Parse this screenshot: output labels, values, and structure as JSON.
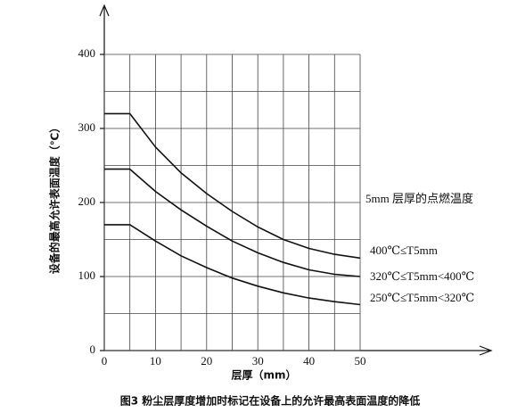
{
  "chart_data": {
    "type": "line",
    "y_label": "设备的最高允许表面温度（℃）",
    "x_label": "层厚（mm）",
    "caption": "图3 粉尘层厚度增加时标记在设备上的允许最高表面温度的降低",
    "annotation": "5mm 层厚的点燃温度",
    "x": [
      0,
      5,
      10,
      15,
      20,
      25,
      30,
      35,
      40,
      45,
      50
    ],
    "series": [
      {
        "name": "400℃≤T5mm",
        "color": "#111111",
        "values": [
          320,
          320,
          275,
          240,
          212,
          188,
          167,
          150,
          138,
          130,
          125
        ]
      },
      {
        "name": "320℃≤T5mm<400℃",
        "color": "#111111",
        "values": [
          245,
          245,
          215,
          190,
          168,
          148,
          132,
          119,
          109,
          103,
          100
        ]
      },
      {
        "name": "250℃≤T5mm<320℃",
        "color": "#111111",
        "values": [
          170,
          170,
          148,
          128,
          112,
          98,
          87,
          78,
          71,
          66,
          62
        ]
      }
    ],
    "xlim": [
      0,
      50
    ],
    "ylim": [
      0,
      400
    ],
    "xticks": [
      0,
      10,
      20,
      30,
      40,
      50
    ],
    "yticks": [
      0,
      100,
      200,
      300,
      400
    ],
    "xminor": [
      5,
      15,
      25,
      35,
      45
    ],
    "yminor": [
      50,
      150,
      250,
      350
    ],
    "grid": true
  }
}
